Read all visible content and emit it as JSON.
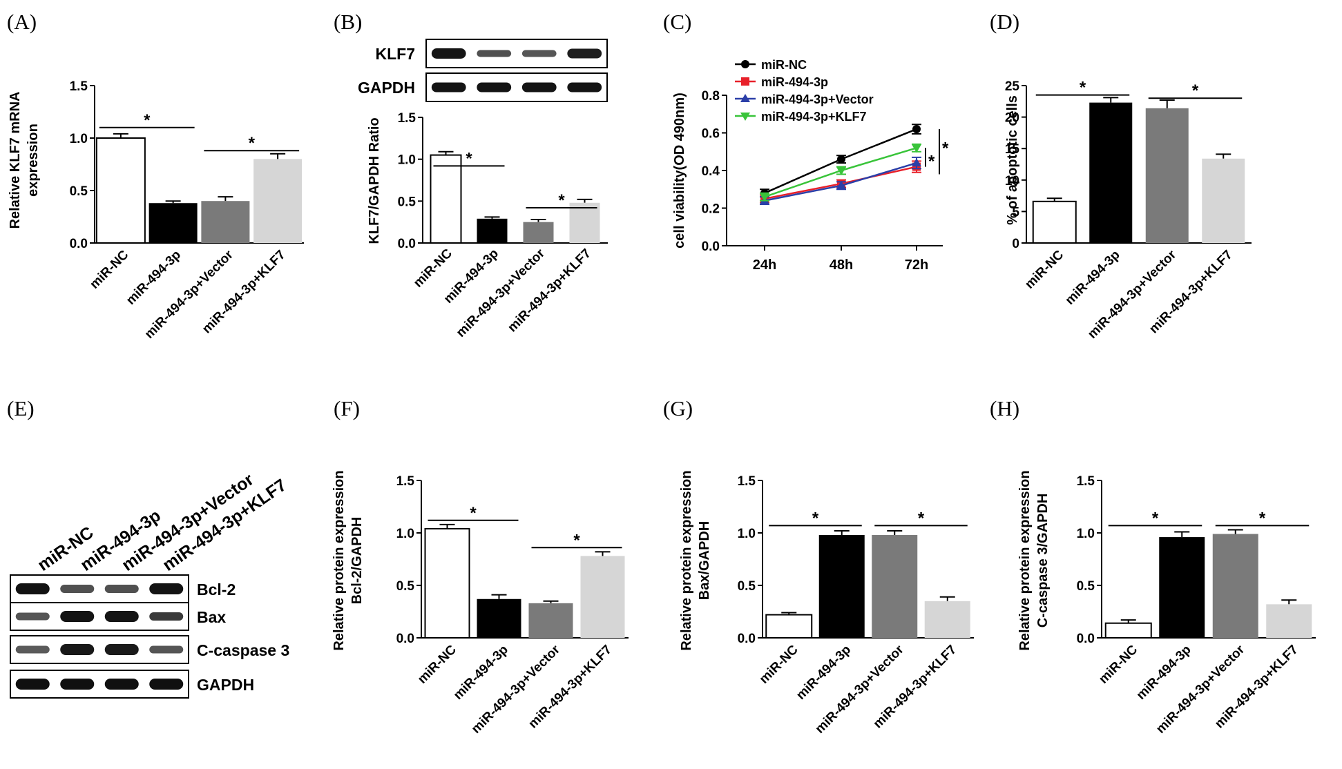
{
  "figure": {
    "background": "#ffffff",
    "colors": {
      "miR-NC": "#ffffff",
      "miR-494-3p": "#000000",
      "miR-494-3p+Vector": "#7a7a7a",
      "miR-494-3p+KLF7": "#d6d6d6",
      "line_miR-NC": "#000000",
      "line_miR-494-3p": "#e8202a",
      "line_miR-494-3p+Vector": "#2b3fa8",
      "line_miR-494-3p+KLF7": "#39c43a"
    }
  },
  "blots": {
    "B": {
      "rows": [
        "KLF7",
        "GAPDH"
      ]
    },
    "E": {
      "lanes": [
        "miR-NC",
        "miR-494-3p",
        "miR-494-3p+Vector",
        "miR-494-3p+KLF7"
      ],
      "rows": [
        "Bcl-2",
        "Bax",
        "C-caspase 3",
        "GAPDH"
      ]
    }
  },
  "chart_data": [
    {
      "panel": "(A)",
      "type": "bar",
      "ylabel": "Relative KLF7 mRNA expression",
      "ylabel_lines": [
        "Relative KLF7 mRNA",
        "expression"
      ],
      "categories": [
        "miR-NC",
        "miR-494-3p",
        "miR-494-3p+Vector",
        "miR-494-3p+KLF7"
      ],
      "values": [
        1.0,
        0.38,
        0.4,
        0.8
      ],
      "errors": [
        0.04,
        0.02,
        0.04,
        0.05
      ],
      "ylim": [
        0,
        1.5
      ],
      "yticks": [
        "0.0",
        "0.5",
        "1.0",
        "1.5"
      ],
      "significance": [
        {
          "from": 0,
          "to": 1,
          "y": 1.1,
          "label": "*"
        },
        {
          "from": 2,
          "to": 3,
          "y": 0.88,
          "label": "*"
        }
      ]
    },
    {
      "panel": "(B)",
      "type": "bar",
      "ylabel": "KLF7/GAPDH Ratio",
      "ylabel_lines": [
        "KLF7/GAPDH Ratio"
      ],
      "categories": [
        "miR-NC",
        "miR-494-3p",
        "miR-494-3p+Vector",
        "miR-494-3p+KLF7"
      ],
      "values": [
        1.05,
        0.29,
        0.25,
        0.48
      ],
      "errors": [
        0.04,
        0.02,
        0.03,
        0.04
      ],
      "ylim": [
        0,
        1.5
      ],
      "yticks": [
        "0.0",
        "0.5",
        "1.0",
        "1.5"
      ],
      "significance": [
        {
          "from": 0,
          "to": 1,
          "y": 0.92,
          "label": "*"
        },
        {
          "from": 2,
          "to": 3,
          "y": 0.42,
          "label": "*"
        }
      ]
    },
    {
      "panel": "(C)",
      "type": "line",
      "ylabel": "cell viability(OD 490nm)",
      "x": [
        "24h",
        "48h",
        "72h"
      ],
      "series": [
        {
          "name": "miR-NC",
          "values": [
            0.28,
            0.46,
            0.62
          ],
          "errors": [
            0.02,
            0.02,
            0.025
          ],
          "marker": "circle"
        },
        {
          "name": "miR-494-3p",
          "values": [
            0.25,
            0.33,
            0.42
          ],
          "errors": [
            0.02,
            0.02,
            0.03
          ],
          "marker": "square"
        },
        {
          "name": "miR-494-3p+Vector",
          "values": [
            0.24,
            0.32,
            0.44
          ],
          "errors": [
            0.02,
            0.02,
            0.03
          ],
          "marker": "triangle-up"
        },
        {
          "name": "miR-494-3p+KLF7",
          "values": [
            0.26,
            0.4,
            0.52
          ],
          "errors": [
            0.02,
            0.02,
            0.02
          ],
          "marker": "triangle-down"
        }
      ],
      "ylim": [
        0,
        0.8
      ],
      "yticks": [
        "0.0",
        "0.2",
        "0.4",
        "0.6",
        "0.8"
      ],
      "significance": [
        {
          "label": "*"
        },
        {
          "label": "*"
        }
      ]
    },
    {
      "panel": "(D)",
      "type": "bar",
      "ylabel": "% of apoptotic cells",
      "ylabel_lines": [
        "% of apoptotic cells"
      ],
      "categories": [
        "miR-NC",
        "miR-494-3p",
        "miR-494-3p+Vector",
        "miR-494-3p+KLF7"
      ],
      "values": [
        6.6,
        22.3,
        21.4,
        13.4
      ],
      "errors": [
        0.5,
        0.8,
        1.3,
        0.7
      ],
      "ylim": [
        0,
        25
      ],
      "yticks": [
        "0",
        "5",
        "10",
        "15",
        "20",
        "25"
      ],
      "significance": [
        {
          "from": 0,
          "to": 1,
          "y": 23.5,
          "label": "*"
        },
        {
          "from": 2,
          "to": 3,
          "y": 23.0,
          "label": "*"
        }
      ]
    },
    {
      "panel": "(F)",
      "type": "bar",
      "ylabel": "Relative protein expression Bcl-2/GAPDH",
      "ylabel_lines": [
        "Relative protein expression",
        "Bcl-2/GAPDH"
      ],
      "categories": [
        "miR-NC",
        "miR-494-3p",
        "miR-494-3p+Vector",
        "miR-494-3p+KLF7"
      ],
      "values": [
        1.04,
        0.37,
        0.33,
        0.78
      ],
      "errors": [
        0.04,
        0.04,
        0.02,
        0.04
      ],
      "ylim": [
        0,
        1.5
      ],
      "yticks": [
        "0.0",
        "0.5",
        "1.0",
        "1.5"
      ],
      "significance": [
        {
          "from": 0,
          "to": 1,
          "y": 1.12,
          "label": "*"
        },
        {
          "from": 2,
          "to": 3,
          "y": 0.86,
          "label": "*"
        }
      ]
    },
    {
      "panel": "(G)",
      "type": "bar",
      "ylabel": "Relative protein expression Bax/GAPDH",
      "ylabel_lines": [
        "Relative protein expression",
        "Bax/GAPDH"
      ],
      "categories": [
        "miR-NC",
        "miR-494-3p",
        "miR-494-3p+Vector",
        "miR-494-3p+KLF7"
      ],
      "values": [
        0.22,
        0.98,
        0.98,
        0.35
      ],
      "errors": [
        0.02,
        0.04,
        0.04,
        0.04
      ],
      "ylim": [
        0,
        1.5
      ],
      "yticks": [
        "0.0",
        "0.5",
        "1.0",
        "1.5"
      ],
      "significance": [
        {
          "from": 0,
          "to": 1,
          "y": 1.07,
          "label": "*"
        },
        {
          "from": 2,
          "to": 3,
          "y": 1.07,
          "label": "*"
        }
      ]
    },
    {
      "panel": "(H)",
      "type": "bar",
      "ylabel": "Relative protein expression C-caspase 3/GAPDH",
      "ylabel_lines": [
        "Relative protein expression",
        "C-caspase 3/GAPDH"
      ],
      "categories": [
        "miR-NC",
        "miR-494-3p",
        "miR-494-3p+Vector",
        "miR-494-3p+KLF7"
      ],
      "values": [
        0.14,
        0.96,
        0.99,
        0.32
      ],
      "errors": [
        0.03,
        0.05,
        0.04,
        0.04
      ],
      "ylim": [
        0,
        1.5
      ],
      "yticks": [
        "0.0",
        "0.5",
        "1.0",
        "1.5"
      ],
      "significance": [
        {
          "from": 0,
          "to": 1,
          "y": 1.07,
          "label": "*"
        },
        {
          "from": 2,
          "to": 3,
          "y": 1.07,
          "label": "*"
        }
      ]
    }
  ],
  "panel_labels": [
    "(A)",
    "(B)",
    "(C)",
    "(D)",
    "(E)",
    "(F)",
    "(G)",
    "(H)"
  ]
}
